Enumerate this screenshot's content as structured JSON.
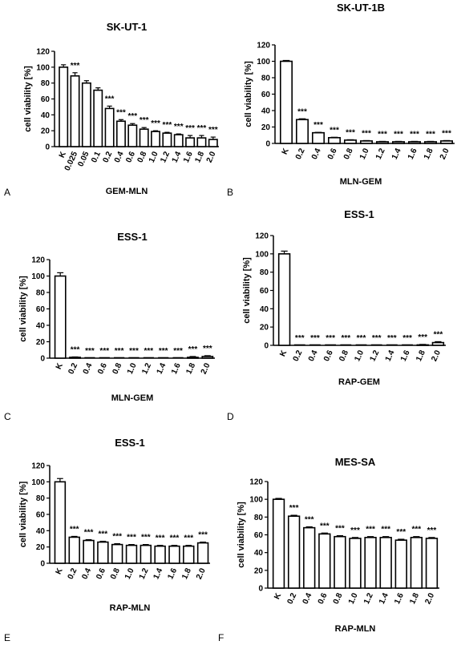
{
  "chart_data": [
    {
      "panel": "A",
      "type": "bar",
      "title": "SK-UT-1",
      "xlabel": "GEM-MLN",
      "ylabel": "cell viability [%]",
      "ylim": [
        0,
        120
      ],
      "yticks": [
        0,
        20,
        40,
        60,
        80,
        100,
        120
      ],
      "categories": [
        "K",
        "0.025",
        "0.05",
        "0.1",
        "0.2",
        "0.4",
        "0.6",
        "0.8",
        "1.0",
        "1.2",
        "1.4",
        "1.6",
        "1.8",
        "2.0"
      ],
      "values": [
        100,
        89,
        80,
        71,
        48,
        32,
        27,
        22,
        19,
        17,
        15,
        11,
        11,
        9
      ],
      "errors": [
        3,
        4,
        3,
        3,
        3,
        2,
        2,
        2,
        1,
        1,
        1,
        3,
        3,
        3
      ],
      "significance": [
        "",
        "***",
        "",
        "",
        "***",
        "***",
        "***",
        "***",
        "***",
        "***",
        "***",
        "***",
        "***",
        "***"
      ]
    },
    {
      "panel": "B",
      "type": "bar",
      "title": "SK-UT-1B",
      "xlabel": "MLN-GEM",
      "ylabel": "cell viability [%]",
      "ylim": [
        0,
        120
      ],
      "yticks": [
        0,
        20,
        40,
        60,
        80,
        100,
        120
      ],
      "categories": [
        "K",
        "0.2",
        "0.4",
        "0.6",
        "0.8",
        "1.0",
        "1.2",
        "1.4",
        "1.6",
        "1.8",
        "2.0"
      ],
      "values": [
        100,
        29,
        13,
        7,
        4,
        3,
        2,
        2,
        2,
        2,
        3
      ],
      "errors": [
        1,
        1,
        0.5,
        0.5,
        0.5,
        0.5,
        0.5,
        0.5,
        0.5,
        0.5,
        0.5
      ],
      "significance": [
        "",
        "***",
        "***",
        "***",
        "***",
        "***",
        "***",
        "***",
        "***",
        "***",
        "***"
      ]
    },
    {
      "panel": "C",
      "type": "bar",
      "title": "ESS-1",
      "xlabel": "MLN-GEM",
      "ylabel": "cell viability [%]",
      "ylim": [
        0,
        120
      ],
      "yticks": [
        0,
        20,
        40,
        60,
        80,
        100,
        120
      ],
      "categories": [
        "K",
        "0.2",
        "0.4",
        "0.6",
        "0.8",
        "1.0",
        "1.2",
        "1.4",
        "1.6",
        "1.8",
        "2.0"
      ],
      "values": [
        100,
        1,
        0,
        0,
        0,
        0,
        0,
        0,
        0,
        1,
        2
      ],
      "errors": [
        4,
        0.5,
        0,
        0,
        0,
        0,
        0,
        0,
        0,
        1,
        1
      ],
      "significance": [
        "",
        "***",
        "***",
        "***",
        "***",
        "***",
        "***",
        "***",
        "***",
        "***",
        "***"
      ]
    },
    {
      "panel": "D",
      "type": "bar",
      "title": "ESS-1",
      "xlabel": "RAP-GEM",
      "ylabel": "cell viability [%]",
      "ylim": [
        0,
        120
      ],
      "yticks": [
        0,
        20,
        40,
        60,
        80,
        100,
        120
      ],
      "categories": [
        "K",
        "0.2",
        "0.4",
        "0.6",
        "0.8",
        "1.0",
        "1.2",
        "1.4",
        "1.6",
        "1.8",
        "2.0"
      ],
      "values": [
        100,
        0,
        0,
        0,
        0,
        0,
        0,
        0,
        0,
        0.5,
        3
      ],
      "errors": [
        3,
        0,
        0,
        0,
        0,
        0,
        0,
        0,
        0,
        0.5,
        1
      ],
      "significance": [
        "",
        "***",
        "***",
        "***",
        "***",
        "***",
        "***",
        "***",
        "***",
        "***",
        "***"
      ]
    },
    {
      "panel": "E",
      "type": "bar",
      "title": "ESS-1",
      "xlabel": "RAP-MLN",
      "ylabel": "cell viability [%]",
      "ylim": [
        0,
        120
      ],
      "yticks": [
        0,
        20,
        40,
        60,
        80,
        100,
        120
      ],
      "categories": [
        "K",
        "0.2",
        "0.4",
        "0.6",
        "0.8",
        "1.0",
        "1.2",
        "1.4",
        "1.6",
        "1.8",
        "2.0"
      ],
      "values": [
        100,
        32,
        28,
        26,
        23,
        22,
        22,
        21,
        21,
        21,
        25
      ],
      "errors": [
        4,
        1,
        1,
        1,
        1,
        1,
        1,
        1,
        1,
        1,
        1
      ],
      "significance": [
        "",
        "***",
        "***",
        "***",
        "***",
        "***",
        "***",
        "***",
        "***",
        "***",
        "***"
      ]
    },
    {
      "panel": "F",
      "type": "bar",
      "title": "MES-SA",
      "xlabel": "RAP-MLN",
      "ylabel": "cell viability [%]",
      "ylim": [
        0,
        120
      ],
      "yticks": [
        0,
        20,
        40,
        60,
        80,
        100,
        120
      ],
      "categories": [
        "K",
        "0.2",
        "0.4",
        "0.6",
        "0.8",
        "1.0",
        "1.2",
        "1.4",
        "1.6",
        "1.8",
        "2.0"
      ],
      "values": [
        100,
        81,
        68,
        61,
        58,
        56,
        57,
        57,
        54,
        57,
        56
      ],
      "errors": [
        1,
        1,
        1,
        1,
        1,
        1,
        1,
        1,
        1,
        1,
        1
      ],
      "significance": [
        "",
        "***",
        "***",
        "***",
        "***",
        "***",
        "***",
        "***",
        "***",
        "***",
        "***"
      ]
    }
  ]
}
